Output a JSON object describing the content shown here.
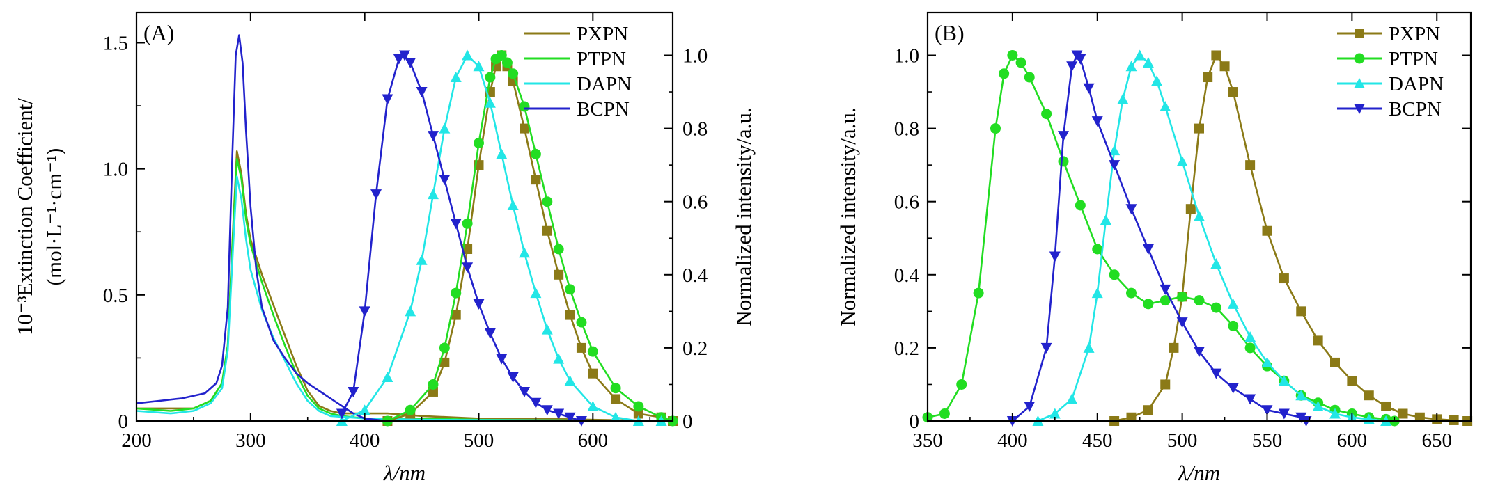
{
  "chart_data": [
    {
      "panel": "(A)",
      "type": "line",
      "xlabel": "λ/nm",
      "ylabel_left": "10⁻³Extinction Coefficient/",
      "ylabel_left_units": "(mol·L⁻¹·cm⁻¹)",
      "ylabel_right": "Normalized intensity/a.u.",
      "xlim": [
        200,
        670
      ],
      "ylim_left": [
        0,
        1.62
      ],
      "ylim_right": [
        0,
        1.117
      ],
      "xticks": [
        "200",
        "300",
        "400",
        "500",
        "600"
      ],
      "yticks_left": [
        "0",
        "0.5",
        "1.0",
        "1.5"
      ],
      "yticks_right": [
        "0",
        "0.2",
        "0.4",
        "0.6",
        "0.8",
        "1.0"
      ],
      "legend": [
        "PXPN",
        "PTPN",
        "DAPN",
        "BCPN"
      ],
      "absorption_series": [
        {
          "name": "PXPN",
          "color": "#8b7a17",
          "x": [
            200,
            230,
            250,
            265,
            275,
            280,
            285,
            288,
            292,
            296,
            300,
            310,
            320,
            330,
            340,
            350,
            360,
            370,
            380,
            400,
            420,
            450,
            500,
            550,
            600,
            670
          ],
          "y": [
            0.05,
            0.05,
            0.05,
            0.08,
            0.15,
            0.3,
            0.8,
            1.07,
            0.98,
            0.82,
            0.72,
            0.58,
            0.46,
            0.34,
            0.22,
            0.12,
            0.06,
            0.04,
            0.03,
            0.03,
            0.03,
            0.02,
            0.01,
            0.01,
            0.005,
            0.0
          ]
        },
        {
          "name": "PTPN",
          "color": "#22dd22",
          "x": [
            200,
            230,
            250,
            265,
            275,
            280,
            285,
            288,
            292,
            296,
            300,
            310,
            320,
            330,
            340,
            350,
            360,
            370,
            380,
            400,
            450,
            500,
            670
          ],
          "y": [
            0.05,
            0.04,
            0.05,
            0.08,
            0.15,
            0.3,
            0.78,
            1.04,
            0.96,
            0.8,
            0.7,
            0.55,
            0.42,
            0.3,
            0.19,
            0.1,
            0.05,
            0.03,
            0.02,
            0.01,
            0.01,
            0.005,
            0.0
          ]
        },
        {
          "name": "DAPN",
          "color": "#22e6e6",
          "x": [
            200,
            230,
            250,
            265,
            275,
            280,
            285,
            288,
            292,
            296,
            300,
            310,
            320,
            330,
            340,
            350,
            360,
            370,
            400,
            450,
            670
          ],
          "y": [
            0.04,
            0.03,
            0.04,
            0.07,
            0.13,
            0.28,
            0.72,
            0.97,
            0.88,
            0.72,
            0.6,
            0.44,
            0.33,
            0.24,
            0.15,
            0.08,
            0.04,
            0.02,
            0.01,
            0.005,
            0.0
          ]
        },
        {
          "name": "BCPN",
          "color": "#2222cc",
          "x": [
            200,
            220,
            240,
            260,
            270,
            275,
            280,
            284,
            287,
            290,
            293,
            296,
            300,
            305,
            310,
            320,
            330,
            340,
            350,
            360,
            370,
            380,
            390,
            400,
            420,
            450,
            500,
            670
          ],
          "y": [
            0.07,
            0.08,
            0.09,
            0.11,
            0.15,
            0.22,
            0.45,
            1.05,
            1.45,
            1.53,
            1.42,
            1.15,
            0.85,
            0.6,
            0.45,
            0.32,
            0.25,
            0.19,
            0.15,
            0.12,
            0.09,
            0.06,
            0.03,
            0.01,
            0.0,
            0.0,
            0.0,
            0.0
          ]
        }
      ],
      "emission_series": [
        {
          "name": "PXPN",
          "color": "#8b7a17",
          "marker": "square",
          "x": [
            420,
            440,
            460,
            470,
            480,
            490,
            500,
            510,
            515,
            520,
            525,
            530,
            540,
            550,
            560,
            570,
            580,
            590,
            600,
            620,
            640,
            660,
            670
          ],
          "y": [
            0.0,
            0.02,
            0.08,
            0.16,
            0.29,
            0.47,
            0.7,
            0.9,
            0.97,
            1.0,
            0.97,
            0.93,
            0.8,
            0.66,
            0.52,
            0.4,
            0.29,
            0.2,
            0.13,
            0.06,
            0.02,
            0.01,
            0.0
          ]
        },
        {
          "name": "PTPN",
          "color": "#22dd22",
          "marker": "circle",
          "x": [
            420,
            440,
            460,
            470,
            480,
            490,
            500,
            510,
            515,
            520,
            525,
            530,
            540,
            550,
            560,
            570,
            580,
            590,
            600,
            620,
            640,
            660,
            670
          ],
          "y": [
            0.0,
            0.03,
            0.1,
            0.2,
            0.35,
            0.54,
            0.76,
            0.94,
            0.99,
            1.0,
            0.98,
            0.95,
            0.86,
            0.73,
            0.6,
            0.47,
            0.36,
            0.27,
            0.19,
            0.09,
            0.04,
            0.01,
            0.0
          ]
        },
        {
          "name": "DAPN",
          "color": "#22e6e6",
          "marker": "triangle-up",
          "x": [
            380,
            400,
            420,
            440,
            450,
            460,
            470,
            480,
            490,
            500,
            510,
            520,
            530,
            540,
            550,
            560,
            570,
            580,
            600,
            620,
            640,
            660
          ],
          "y": [
            0.0,
            0.03,
            0.12,
            0.3,
            0.44,
            0.62,
            0.8,
            0.94,
            1.0,
            0.97,
            0.87,
            0.73,
            0.59,
            0.46,
            0.35,
            0.25,
            0.17,
            0.11,
            0.04,
            0.01,
            0.0,
            0.0
          ]
        },
        {
          "name": "BCPN",
          "color": "#2222cc",
          "marker": "triangle-down",
          "x": [
            380,
            390,
            400,
            410,
            420,
            430,
            435,
            440,
            450,
            460,
            470,
            480,
            490,
            500,
            510,
            520,
            530,
            540,
            550,
            560,
            570,
            580,
            590
          ],
          "y": [
            0.02,
            0.08,
            0.3,
            0.62,
            0.88,
            0.99,
            1.0,
            0.98,
            0.9,
            0.78,
            0.66,
            0.54,
            0.42,
            0.32,
            0.24,
            0.17,
            0.12,
            0.08,
            0.05,
            0.03,
            0.02,
            0.01,
            0.0
          ]
        }
      ]
    },
    {
      "panel": "(B)",
      "type": "line",
      "xlabel": "λ/nm",
      "ylabel": "Normalized intensity/a.u.",
      "xlim": [
        350,
        670
      ],
      "ylim": [
        0,
        1.117
      ],
      "xticks": [
        "350",
        "400",
        "450",
        "500",
        "550",
        "600",
        "650"
      ],
      "yticks": [
        "0",
        "0.2",
        "0.4",
        "0.6",
        "0.8",
        "1.0"
      ],
      "legend": [
        "PXPN",
        "PTPN",
        "DAPN",
        "BCPN"
      ],
      "series": [
        {
          "name": "PXPN",
          "color": "#8b7a17",
          "marker": "square",
          "x": [
            460,
            470,
            480,
            490,
            495,
            500,
            505,
            510,
            515,
            520,
            525,
            530,
            540,
            550,
            560,
            570,
            580,
            590,
            600,
            610,
            620,
            630,
            640,
            650,
            660,
            668
          ],
          "y": [
            0.0,
            0.01,
            0.03,
            0.1,
            0.2,
            0.34,
            0.58,
            0.8,
            0.94,
            1.0,
            0.97,
            0.9,
            0.7,
            0.52,
            0.39,
            0.3,
            0.22,
            0.16,
            0.11,
            0.07,
            0.04,
            0.02,
            0.01,
            0.005,
            0.002,
            0.0
          ]
        },
        {
          "name": "PTPN",
          "color": "#22dd22",
          "marker": "circle",
          "x": [
            350,
            360,
            370,
            380,
            390,
            395,
            400,
            405,
            410,
            420,
            430,
            440,
            450,
            460,
            470,
            480,
            490,
            500,
            510,
            520,
            530,
            540,
            550,
            560,
            570,
            580,
            590,
            600,
            610,
            620,
            625
          ],
          "y": [
            0.01,
            0.02,
            0.1,
            0.35,
            0.8,
            0.95,
            1.0,
            0.98,
            0.94,
            0.84,
            0.71,
            0.59,
            0.47,
            0.4,
            0.35,
            0.32,
            0.33,
            0.34,
            0.33,
            0.31,
            0.26,
            0.2,
            0.15,
            0.11,
            0.07,
            0.05,
            0.03,
            0.02,
            0.01,
            0.005,
            0.0
          ]
        },
        {
          "name": "DAPN",
          "color": "#22e6e6",
          "marker": "triangle-up",
          "x": [
            415,
            425,
            435,
            445,
            450,
            455,
            460,
            465,
            470,
            475,
            480,
            485,
            490,
            500,
            510,
            520,
            530,
            540,
            550,
            560,
            570,
            580,
            590,
            600,
            610,
            620
          ],
          "y": [
            0.0,
            0.02,
            0.06,
            0.2,
            0.35,
            0.55,
            0.74,
            0.88,
            0.97,
            1.0,
            0.98,
            0.93,
            0.86,
            0.71,
            0.56,
            0.43,
            0.32,
            0.23,
            0.16,
            0.11,
            0.07,
            0.04,
            0.02,
            0.01,
            0.005,
            0.0
          ]
        },
        {
          "name": "BCPN",
          "color": "#2222cc",
          "marker": "triangle-down",
          "x": [
            400,
            410,
            420,
            425,
            430,
            435,
            438,
            440,
            445,
            450,
            460,
            470,
            480,
            490,
            500,
            510,
            520,
            530,
            540,
            550,
            560,
            570,
            573
          ],
          "y": [
            0.0,
            0.04,
            0.2,
            0.45,
            0.78,
            0.97,
            1.0,
            0.99,
            0.91,
            0.82,
            0.7,
            0.58,
            0.47,
            0.36,
            0.27,
            0.19,
            0.13,
            0.09,
            0.06,
            0.03,
            0.02,
            0.01,
            0.0
          ]
        }
      ]
    }
  ]
}
